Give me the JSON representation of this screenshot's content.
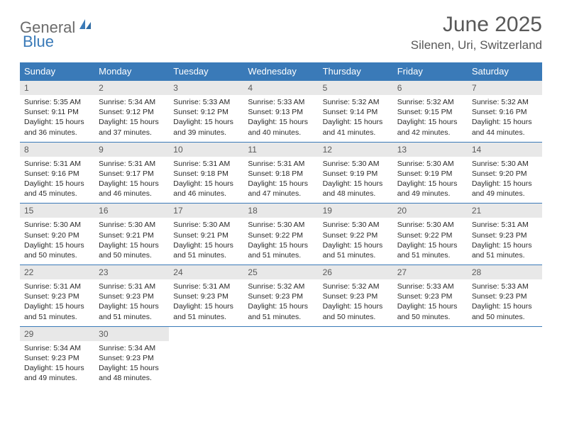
{
  "logo": {
    "text_general": "General",
    "text_blue": "Blue",
    "icon_color": "#3a7ab8"
  },
  "header": {
    "month_title": "June 2025",
    "location": "Silenen, Uri, Switzerland"
  },
  "colors": {
    "header_bg": "#3a7ab8",
    "header_text": "#ffffff",
    "daynum_bg": "#e8e8e8",
    "daynum_text": "#5a5a5a",
    "body_text": "#2a2a2a",
    "title_text": "#585858",
    "border": "#3a7ab8"
  },
  "weekdays": [
    "Sunday",
    "Monday",
    "Tuesday",
    "Wednesday",
    "Thursday",
    "Friday",
    "Saturday"
  ],
  "weeks": [
    [
      {
        "num": "1",
        "sunrise": "Sunrise: 5:35 AM",
        "sunset": "Sunset: 9:11 PM",
        "daylight1": "Daylight: 15 hours",
        "daylight2": "and 36 minutes."
      },
      {
        "num": "2",
        "sunrise": "Sunrise: 5:34 AM",
        "sunset": "Sunset: 9:12 PM",
        "daylight1": "Daylight: 15 hours",
        "daylight2": "and 37 minutes."
      },
      {
        "num": "3",
        "sunrise": "Sunrise: 5:33 AM",
        "sunset": "Sunset: 9:12 PM",
        "daylight1": "Daylight: 15 hours",
        "daylight2": "and 39 minutes."
      },
      {
        "num": "4",
        "sunrise": "Sunrise: 5:33 AM",
        "sunset": "Sunset: 9:13 PM",
        "daylight1": "Daylight: 15 hours",
        "daylight2": "and 40 minutes."
      },
      {
        "num": "5",
        "sunrise": "Sunrise: 5:32 AM",
        "sunset": "Sunset: 9:14 PM",
        "daylight1": "Daylight: 15 hours",
        "daylight2": "and 41 minutes."
      },
      {
        "num": "6",
        "sunrise": "Sunrise: 5:32 AM",
        "sunset": "Sunset: 9:15 PM",
        "daylight1": "Daylight: 15 hours",
        "daylight2": "and 42 minutes."
      },
      {
        "num": "7",
        "sunrise": "Sunrise: 5:32 AM",
        "sunset": "Sunset: 9:16 PM",
        "daylight1": "Daylight: 15 hours",
        "daylight2": "and 44 minutes."
      }
    ],
    [
      {
        "num": "8",
        "sunrise": "Sunrise: 5:31 AM",
        "sunset": "Sunset: 9:16 PM",
        "daylight1": "Daylight: 15 hours",
        "daylight2": "and 45 minutes."
      },
      {
        "num": "9",
        "sunrise": "Sunrise: 5:31 AM",
        "sunset": "Sunset: 9:17 PM",
        "daylight1": "Daylight: 15 hours",
        "daylight2": "and 46 minutes."
      },
      {
        "num": "10",
        "sunrise": "Sunrise: 5:31 AM",
        "sunset": "Sunset: 9:18 PM",
        "daylight1": "Daylight: 15 hours",
        "daylight2": "and 46 minutes."
      },
      {
        "num": "11",
        "sunrise": "Sunrise: 5:31 AM",
        "sunset": "Sunset: 9:18 PM",
        "daylight1": "Daylight: 15 hours",
        "daylight2": "and 47 minutes."
      },
      {
        "num": "12",
        "sunrise": "Sunrise: 5:30 AM",
        "sunset": "Sunset: 9:19 PM",
        "daylight1": "Daylight: 15 hours",
        "daylight2": "and 48 minutes."
      },
      {
        "num": "13",
        "sunrise": "Sunrise: 5:30 AM",
        "sunset": "Sunset: 9:19 PM",
        "daylight1": "Daylight: 15 hours",
        "daylight2": "and 49 minutes."
      },
      {
        "num": "14",
        "sunrise": "Sunrise: 5:30 AM",
        "sunset": "Sunset: 9:20 PM",
        "daylight1": "Daylight: 15 hours",
        "daylight2": "and 49 minutes."
      }
    ],
    [
      {
        "num": "15",
        "sunrise": "Sunrise: 5:30 AM",
        "sunset": "Sunset: 9:20 PM",
        "daylight1": "Daylight: 15 hours",
        "daylight2": "and 50 minutes."
      },
      {
        "num": "16",
        "sunrise": "Sunrise: 5:30 AM",
        "sunset": "Sunset: 9:21 PM",
        "daylight1": "Daylight: 15 hours",
        "daylight2": "and 50 minutes."
      },
      {
        "num": "17",
        "sunrise": "Sunrise: 5:30 AM",
        "sunset": "Sunset: 9:21 PM",
        "daylight1": "Daylight: 15 hours",
        "daylight2": "and 51 minutes."
      },
      {
        "num": "18",
        "sunrise": "Sunrise: 5:30 AM",
        "sunset": "Sunset: 9:22 PM",
        "daylight1": "Daylight: 15 hours",
        "daylight2": "and 51 minutes."
      },
      {
        "num": "19",
        "sunrise": "Sunrise: 5:30 AM",
        "sunset": "Sunset: 9:22 PM",
        "daylight1": "Daylight: 15 hours",
        "daylight2": "and 51 minutes."
      },
      {
        "num": "20",
        "sunrise": "Sunrise: 5:30 AM",
        "sunset": "Sunset: 9:22 PM",
        "daylight1": "Daylight: 15 hours",
        "daylight2": "and 51 minutes."
      },
      {
        "num": "21",
        "sunrise": "Sunrise: 5:31 AM",
        "sunset": "Sunset: 9:23 PM",
        "daylight1": "Daylight: 15 hours",
        "daylight2": "and 51 minutes."
      }
    ],
    [
      {
        "num": "22",
        "sunrise": "Sunrise: 5:31 AM",
        "sunset": "Sunset: 9:23 PM",
        "daylight1": "Daylight: 15 hours",
        "daylight2": "and 51 minutes."
      },
      {
        "num": "23",
        "sunrise": "Sunrise: 5:31 AM",
        "sunset": "Sunset: 9:23 PM",
        "daylight1": "Daylight: 15 hours",
        "daylight2": "and 51 minutes."
      },
      {
        "num": "24",
        "sunrise": "Sunrise: 5:31 AM",
        "sunset": "Sunset: 9:23 PM",
        "daylight1": "Daylight: 15 hours",
        "daylight2": "and 51 minutes."
      },
      {
        "num": "25",
        "sunrise": "Sunrise: 5:32 AM",
        "sunset": "Sunset: 9:23 PM",
        "daylight1": "Daylight: 15 hours",
        "daylight2": "and 51 minutes."
      },
      {
        "num": "26",
        "sunrise": "Sunrise: 5:32 AM",
        "sunset": "Sunset: 9:23 PM",
        "daylight1": "Daylight: 15 hours",
        "daylight2": "and 50 minutes."
      },
      {
        "num": "27",
        "sunrise": "Sunrise: 5:33 AM",
        "sunset": "Sunset: 9:23 PM",
        "daylight1": "Daylight: 15 hours",
        "daylight2": "and 50 minutes."
      },
      {
        "num": "28",
        "sunrise": "Sunrise: 5:33 AM",
        "sunset": "Sunset: 9:23 PM",
        "daylight1": "Daylight: 15 hours",
        "daylight2": "and 50 minutes."
      }
    ],
    [
      {
        "num": "29",
        "sunrise": "Sunrise: 5:34 AM",
        "sunset": "Sunset: 9:23 PM",
        "daylight1": "Daylight: 15 hours",
        "daylight2": "and 49 minutes."
      },
      {
        "num": "30",
        "sunrise": "Sunrise: 5:34 AM",
        "sunset": "Sunset: 9:23 PM",
        "daylight1": "Daylight: 15 hours",
        "daylight2": "and 48 minutes."
      },
      null,
      null,
      null,
      null,
      null
    ]
  ]
}
